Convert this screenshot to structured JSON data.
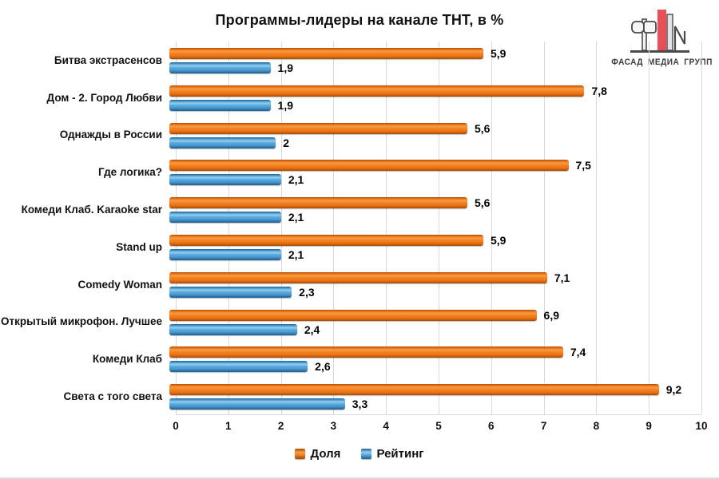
{
  "title": "Программы-лидеры на канале ТНТ, в %",
  "logo": {
    "name": "fasad-media-grupp-logo",
    "text": "ФАСАД МЕДИА ГРУПП",
    "accent_color": "#e84e58",
    "outline_color": "#4a4a4a"
  },
  "chart_data": {
    "type": "bar",
    "orientation": "horizontal",
    "title": "Программы-лидеры на канале ТНТ, в %",
    "categories": [
      "Битва экстрасенсов",
      "Дом - 2. Город Любви",
      "Однажды в России",
      "Где логика?",
      "Комеди Клаб. Karaoke star",
      "Stand up",
      "Comedy Woman",
      "Открытый микрофон. Лучшее",
      "Комеди Клаб",
      "Света с того света"
    ],
    "series": [
      {
        "name": "Доля",
        "color": "#ED7A1A",
        "values": [
          5.9,
          7.8,
          5.6,
          7.5,
          5.6,
          5.9,
          7.1,
          6.9,
          7.4,
          9.2
        ],
        "labels": [
          "5,9",
          "7,8",
          "5,6",
          "7,5",
          "5,6",
          "5,9",
          "7,1",
          "6,9",
          "7,4",
          "9,2"
        ]
      },
      {
        "name": "Рейтинг",
        "color": "#4C9FD6",
        "values": [
          1.9,
          1.9,
          2.0,
          2.1,
          2.1,
          2.1,
          2.3,
          2.4,
          2.6,
          3.3
        ],
        "labels": [
          "1,9",
          "1,9",
          "2",
          "2,1",
          "2,1",
          "2,1",
          "2,3",
          "2,4",
          "2,6",
          "3,3"
        ]
      }
    ],
    "xlim": [
      0,
      10
    ],
    "xticks": [
      "0",
      "1",
      "2",
      "3",
      "4",
      "5",
      "6",
      "7",
      "8",
      "9",
      "10"
    ],
    "grid": true,
    "gridline_color": "#d9d9d9",
    "legend_position": "bottom"
  }
}
